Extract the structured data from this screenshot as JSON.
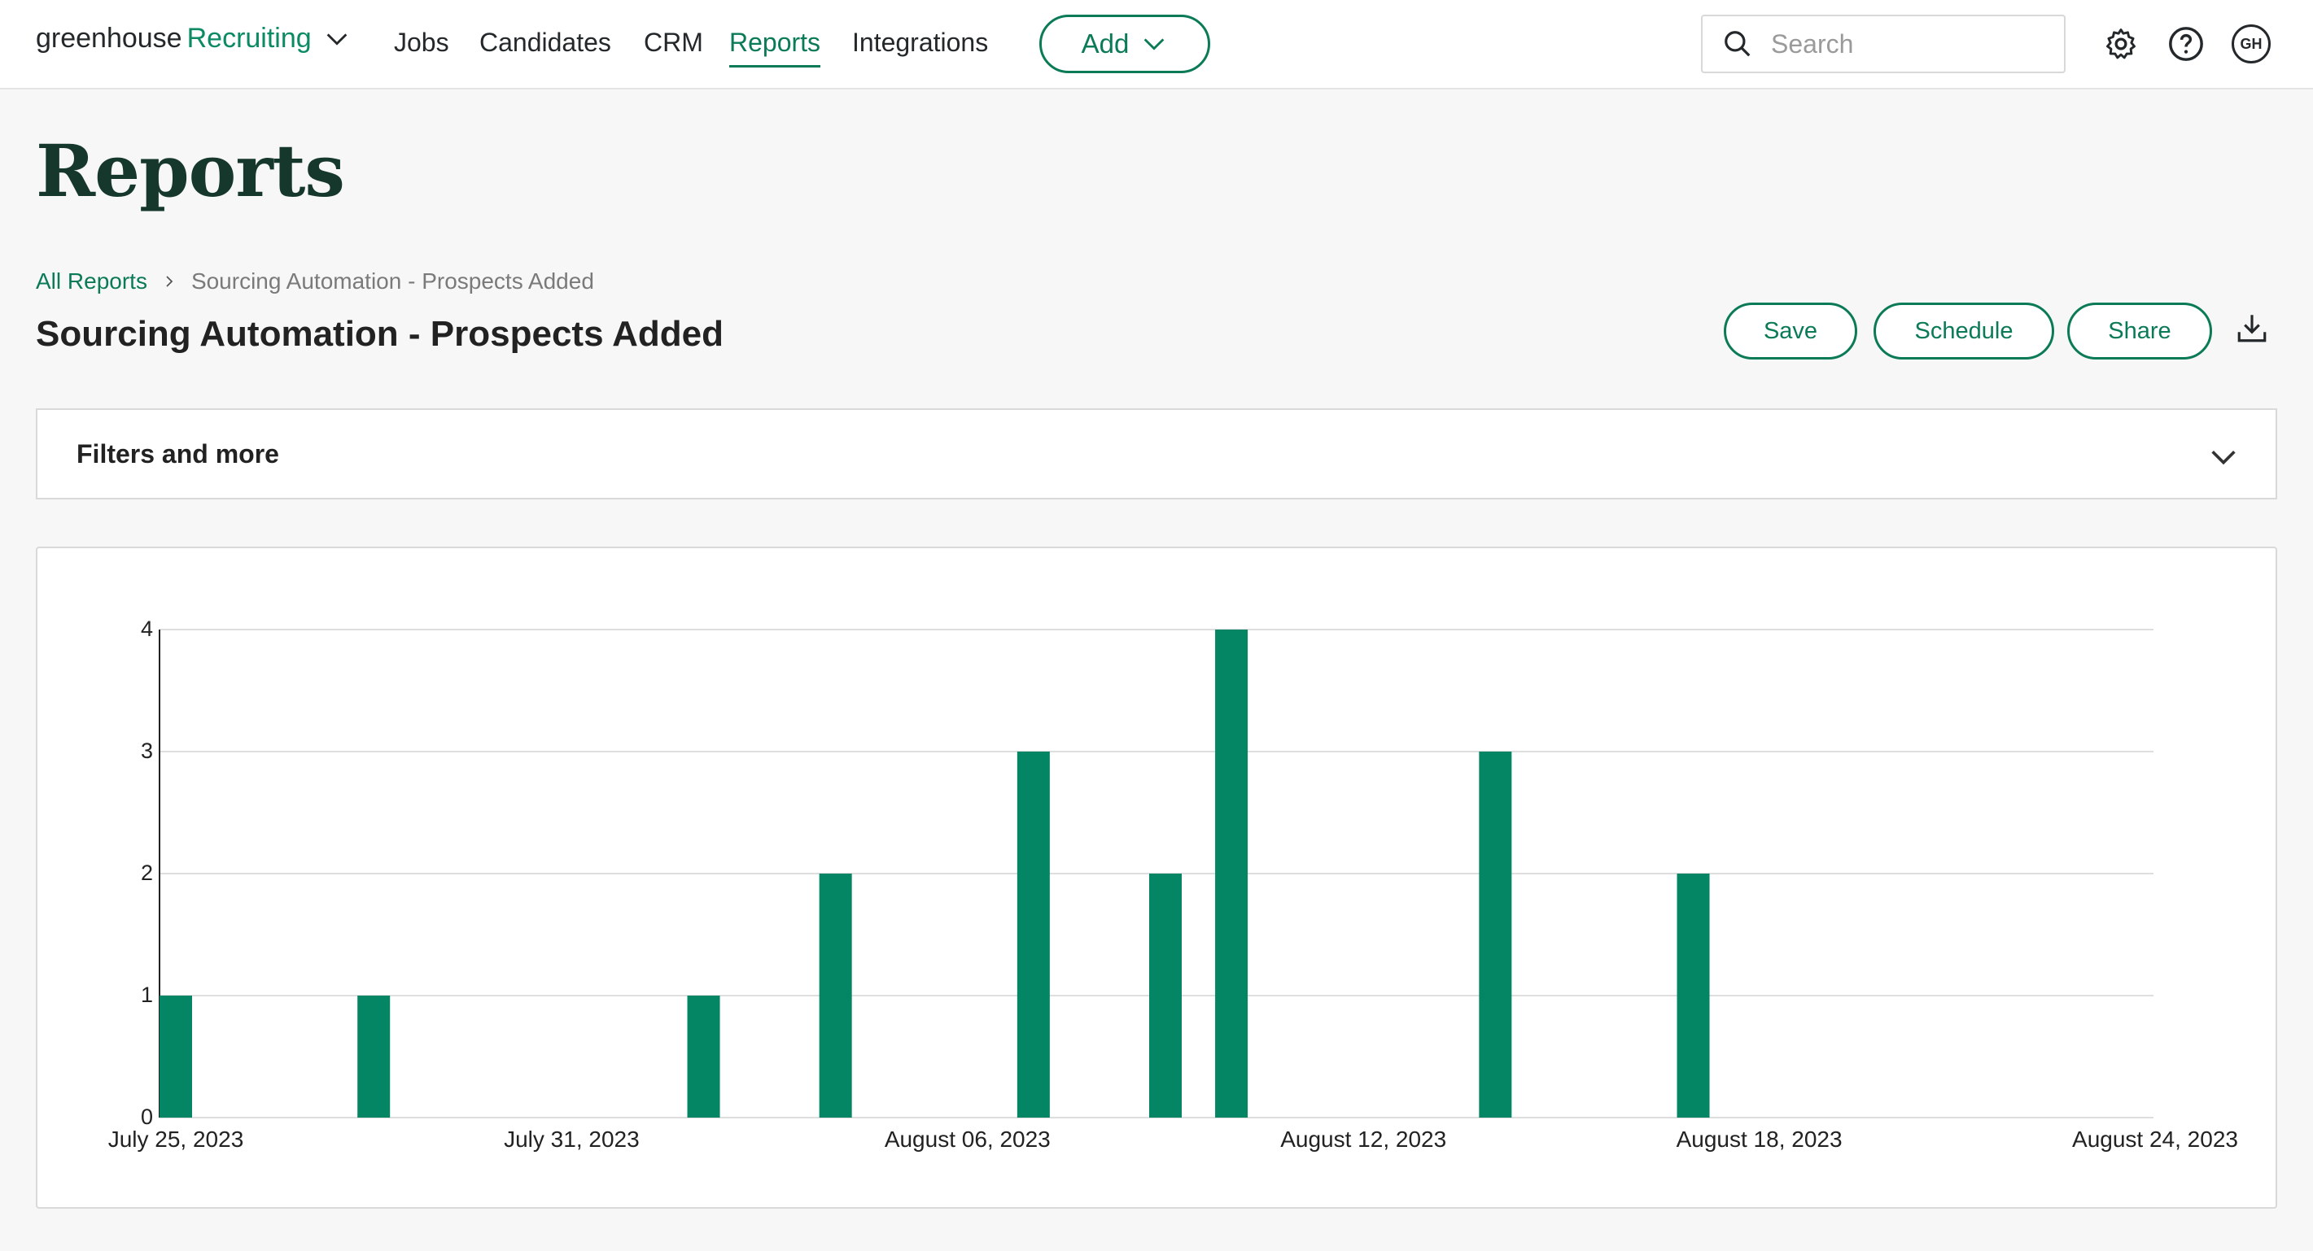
{
  "nav": {
    "logo_part1": "greenhouse",
    "logo_part2": "Recruiting",
    "links": [
      "Jobs",
      "Candidates",
      "CRM",
      "Reports",
      "Integrations"
    ],
    "active_link": "Reports",
    "add_label": "Add",
    "search_placeholder": "Search",
    "icons": [
      "gear-icon",
      "help-icon"
    ],
    "avatar_initials": "GH"
  },
  "page": {
    "title": "Reports",
    "breadcrumb_root": "All Reports",
    "breadcrumb_current": "Sourcing Automation - Prospects Added",
    "report_title": "Sourcing Automation - Prospects Added",
    "actions": {
      "save": "Save",
      "schedule": "Schedule",
      "share": "Share",
      "download_icon": "download-icon"
    },
    "filters_label": "Filters and more"
  },
  "colors": {
    "brand": "#0b7a56",
    "bar": "#048564"
  },
  "chart_data": {
    "type": "bar",
    "x_start": "2023-07-25",
    "x_end": "2023-08-24",
    "x_tick_labels": [
      "July 25, 2023",
      "July 31, 2023",
      "August 06, 2023",
      "August 12, 2023",
      "August 18, 2023",
      "August 24, 2023"
    ],
    "y_ticks": [
      0,
      1,
      2,
      3,
      4
    ],
    "ylim": [
      0,
      4
    ],
    "grid": true,
    "series": [
      {
        "values": [
          {
            "date": "2023-07-25",
            "value": 1
          },
          {
            "date": "2023-07-28",
            "value": 1
          },
          {
            "date": "2023-08-02",
            "value": 1
          },
          {
            "date": "2023-08-04",
            "value": 2
          },
          {
            "date": "2023-08-07",
            "value": 3
          },
          {
            "date": "2023-08-09",
            "value": 2
          },
          {
            "date": "2023-08-10",
            "value": 4
          },
          {
            "date": "2023-08-14",
            "value": 3
          },
          {
            "date": "2023-08-17",
            "value": 2
          }
        ]
      }
    ]
  }
}
